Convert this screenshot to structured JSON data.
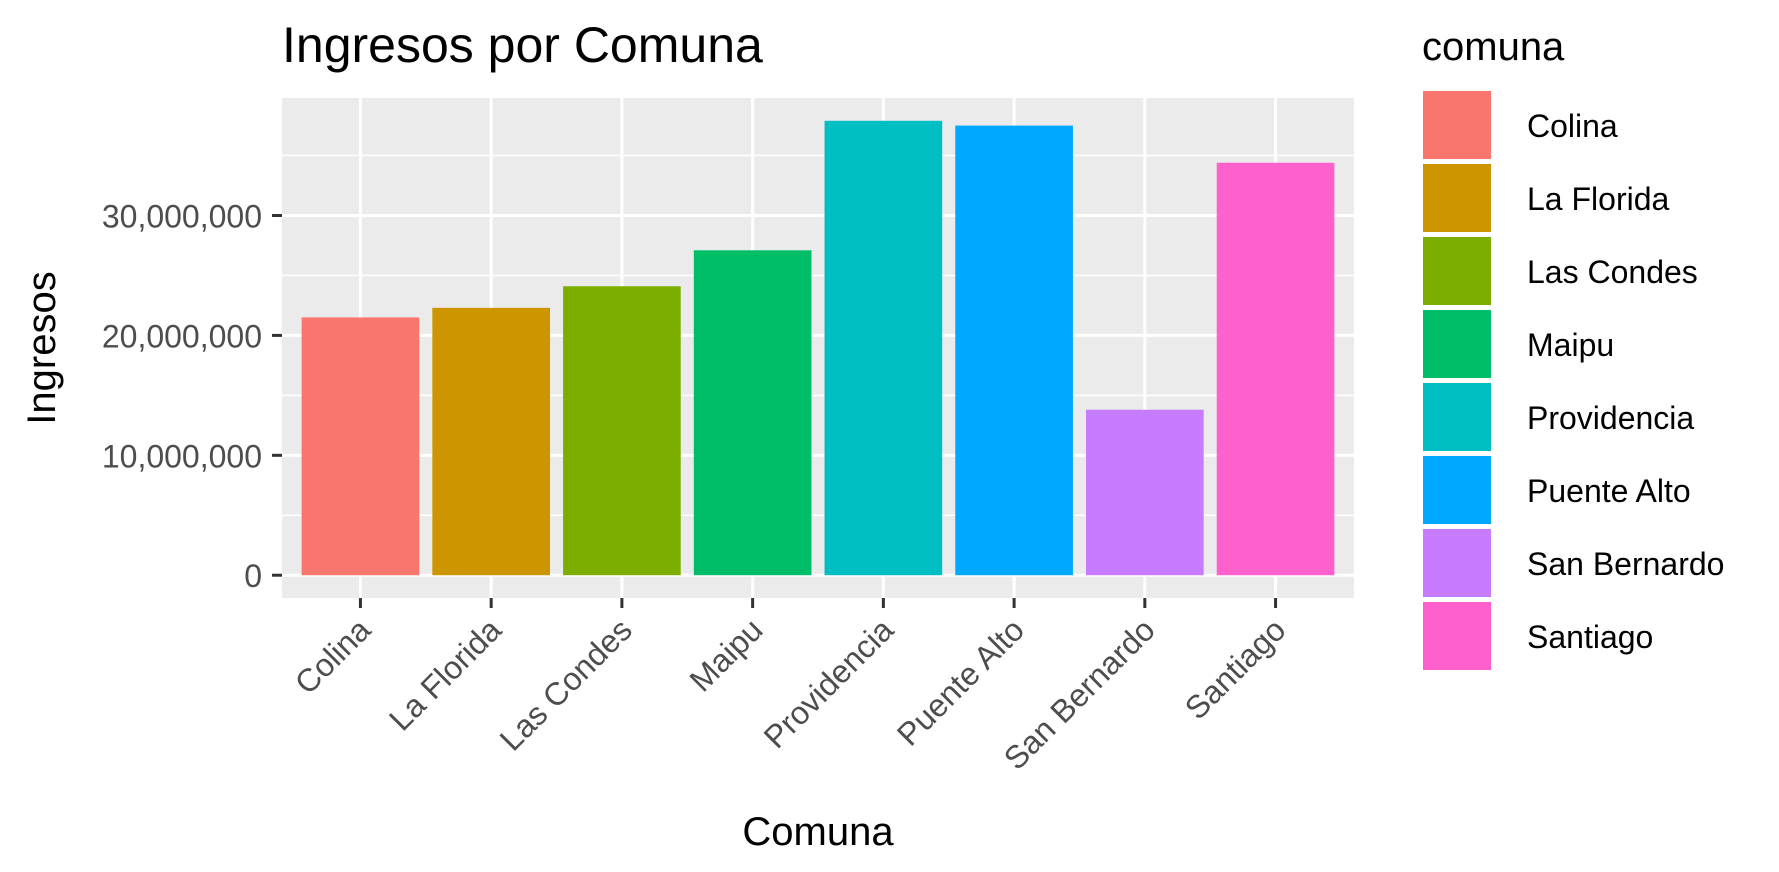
{
  "chart_data": {
    "type": "bar",
    "title": "Ingresos por Comuna",
    "xlabel": "Comuna",
    "ylabel": "Ingresos",
    "categories": [
      "Colina",
      "La Florida",
      "Las Condes",
      "Maipu",
      "Providencia",
      "Puente Alto",
      "San Bernardo",
      "Santiago"
    ],
    "values": [
      21500000,
      22300000,
      24100000,
      27100000,
      37900000,
      37500000,
      13800000,
      34400000
    ],
    "colors": [
      "#F8766D",
      "#CD9600",
      "#7CAE00",
      "#00BE67",
      "#00BFC4",
      "#00A9FF",
      "#C77CFF",
      "#FF61CC"
    ],
    "ylim": [
      -1900000,
      39800000
    ],
    "yticks": [
      0,
      10000000,
      20000000,
      30000000
    ],
    "ytick_labels": [
      "0",
      "10,000,000",
      "20,000,000",
      "30,000,000"
    ],
    "grid": true,
    "legend": {
      "title": "comuna",
      "position": "right"
    }
  }
}
